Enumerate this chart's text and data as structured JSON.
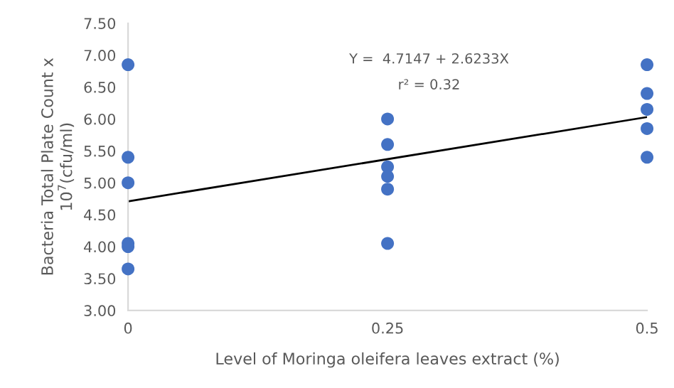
{
  "chart_data": {
    "type": "scatter",
    "xlabel": "Level of Moringa oleifera leaves extract (%)",
    "ylabel": "Bacteria Total Plate Count x\n10$^{7}$(cfu/ml)",
    "annotations": [
      "Y =  4.7147 + 2.6233X",
      "r² = 0.32"
    ],
    "series": [
      {
        "color": "#4472c4",
        "marker": "circle",
        "x": [
          0,
          0,
          0,
          0,
          0,
          0,
          0.25,
          0.25,
          0.25,
          0.25,
          0.25,
          0.25,
          0.5,
          0.5,
          0.5,
          0.5,
          0.5
        ],
        "values": [
          6.85,
          5.4,
          5.0,
          4.05,
          4.0,
          3.65,
          6.0,
          5.6,
          5.25,
          5.1,
          4.9,
          4.05,
          6.85,
          6.4,
          6.15,
          5.85,
          5.4
        ]
      },
      {
        "type": "line",
        "color": "#000000",
        "marker": "none",
        "x": [
          0,
          0.5
        ],
        "values": [
          4.71,
          6.03
        ]
      }
    ],
    "xlim": [
      0,
      0.5
    ],
    "xticks": [
      0,
      0.25,
      0.5
    ],
    "ylim": [
      3.0,
      7.5
    ],
    "yticks": [
      {
        "value": 3.0,
        "label": "3.00"
      },
      {
        "value": 3.5,
        "label": "3.50"
      },
      {
        "value": 4.0,
        "label": "4.00"
      },
      {
        "value": 4.5,
        "label": "4.50"
      },
      {
        "value": 5.0,
        "label": "5.00"
      },
      {
        "value": 5.5,
        "label": "5.50"
      },
      {
        "value": 6.0,
        "label": "6.00"
      },
      {
        "value": 6.5,
        "label": "6.50"
      },
      {
        "value": 7.0,
        "label": "7.00"
      },
      {
        "value": 7.5,
        "label": "7.50"
      }
    ],
    "grid": false,
    "legend": false
  }
}
